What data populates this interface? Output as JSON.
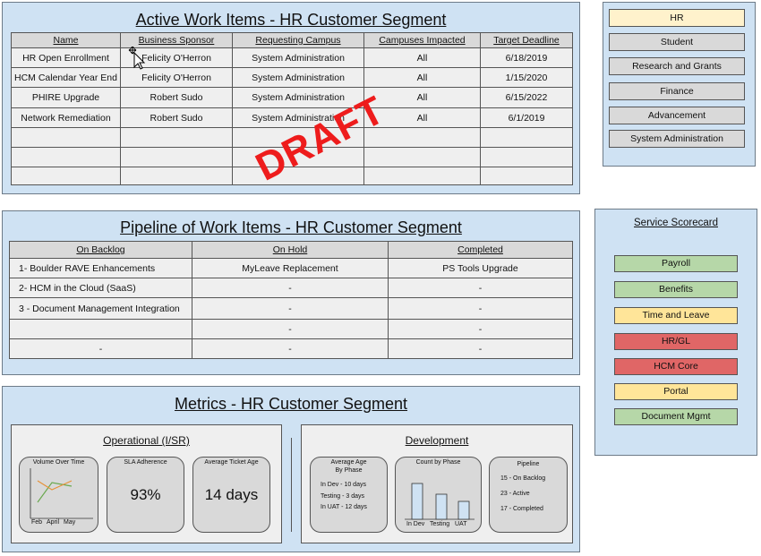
{
  "active": {
    "title": "Active Work Items - HR Customer Segment",
    "headers": [
      "Name",
      "Business Sponsor",
      "Requesting Campus",
      "Campuses Impacted",
      "Target Deadline"
    ],
    "rows": [
      [
        "HR Open Enrollment",
        "Felicity O'Herron",
        "System Administration",
        "All",
        "6/18/2019"
      ],
      [
        "HCM Calendar Year End",
        "Felicity O'Herron",
        "System Administration",
        "All",
        "1/15/2020"
      ],
      [
        "PHIRE Upgrade",
        "Robert Sudo",
        "System Administration",
        "All",
        "6/15/2022"
      ],
      [
        "Network Remediation",
        "Robert Sudo",
        "System Administration",
        "All",
        "6/1/2019"
      ],
      [
        "",
        "",
        "",
        "",
        ""
      ],
      [
        "",
        "",
        "",
        "",
        ""
      ],
      [
        "",
        "",
        "",
        "",
        ""
      ]
    ]
  },
  "watermark": "DRAFT",
  "segments": {
    "items": [
      {
        "label": "HR",
        "color": "#fff2cc"
      },
      {
        "label": "Student",
        "color": "#d9d9d9"
      },
      {
        "label": "Research and Grants",
        "color": "#d9d9d9"
      },
      {
        "label": "Finance",
        "color": "#d9d9d9"
      },
      {
        "label": "Advancement",
        "color": "#d9d9d9"
      },
      {
        "label": "System Administration",
        "color": "#d9d9d9"
      }
    ]
  },
  "pipeline": {
    "title": "Pipeline of Work Items - HR Customer Segment",
    "headers": [
      "On Backlog",
      "On Hold",
      "Completed"
    ],
    "rows": [
      [
        "1-  Boulder RAVE Enhancements",
        "MyLeave Replacement",
        "PS Tools Upgrade"
      ],
      [
        "2- HCM in the Cloud (SaaS)",
        "-",
        "-"
      ],
      [
        "3 - Document Management Integration",
        "-",
        "-"
      ],
      [
        "",
        "-",
        "-"
      ],
      [
        "-",
        "-",
        "-"
      ]
    ]
  },
  "scorecard": {
    "title": "Service Scorecard",
    "items": [
      {
        "label": "Payroll",
        "color": "#b6d7a8"
      },
      {
        "label": "Benefits",
        "color": "#b6d7a8"
      },
      {
        "label": "Time and Leave",
        "color": "#ffe599"
      },
      {
        "label": "HR/GL",
        "color": "#e06666"
      },
      {
        "label": "HCM Core",
        "color": "#e06666"
      },
      {
        "label": "Portal",
        "color": "#ffe599"
      },
      {
        "label": "Document Mgmt",
        "color": "#b6d7a8"
      }
    ]
  },
  "metrics": {
    "title": "Metrics - HR Customer Segment",
    "operational": {
      "title": "Operational (I/SR)",
      "volume": {
        "title": "Volume Over Time",
        "months": [
          "Feb",
          "April",
          "May"
        ]
      },
      "sla": {
        "title": "SLA Adherence",
        "value": "93%"
      },
      "ticket_age": {
        "title": "Average Ticket Age",
        "value": "14 days"
      }
    },
    "development": {
      "title": "Development",
      "avg_age": {
        "title_line1": "Average Age",
        "title_line2": "By Phase",
        "lines": [
          "In Dev - 10 days",
          "Testing - 3 days",
          "In UAT -  12 days"
        ]
      },
      "count": {
        "title": "Count by Phase",
        "labels": [
          "In Dev",
          "Testing",
          "UAT"
        ],
        "values": [
          10,
          7,
          5
        ]
      },
      "pipeline": {
        "title": "Pipeline",
        "lines": [
          "15 - On Backlog",
          "23 - Active",
          "17 - Completed"
        ]
      }
    }
  }
}
